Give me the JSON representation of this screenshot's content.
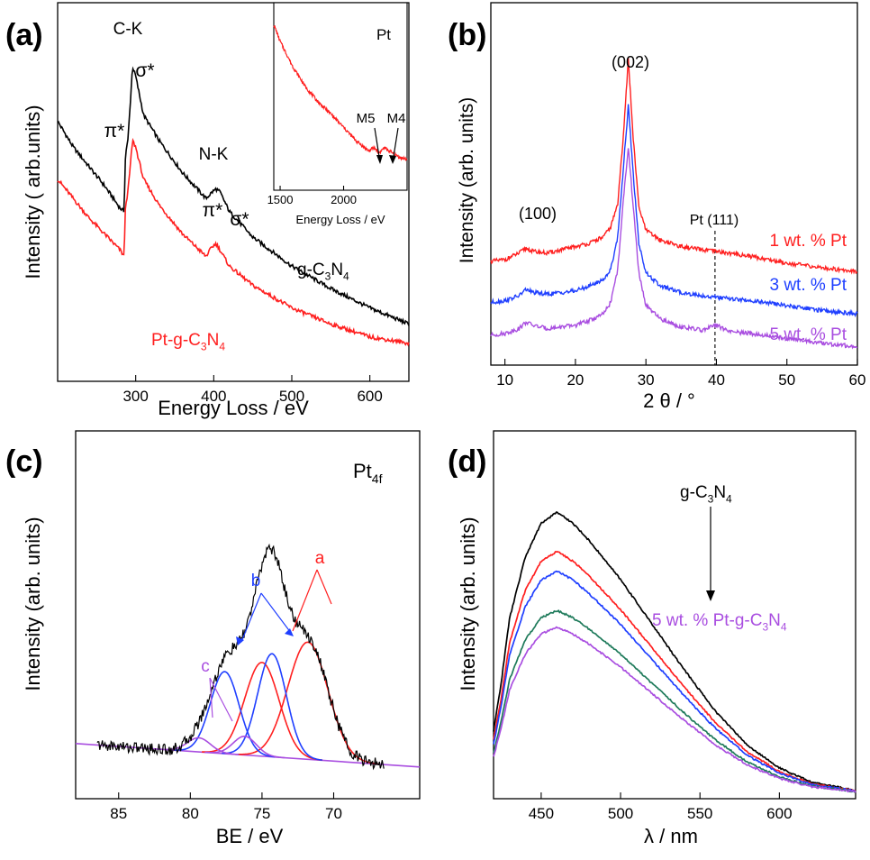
{
  "chart_data": [
    {
      "panel": "(a)",
      "type": "line",
      "xlabel": "Energy Loss / eV",
      "ylabel": "Intensity ( arb.units)",
      "xlim": [
        200,
        650
      ],
      "xticks": [
        "300",
        "400",
        "500",
        "600"
      ],
      "edge_labels": [
        "C-K",
        "N-K"
      ],
      "annotations": [
        "π*",
        "σ*",
        "π*",
        "σ*"
      ],
      "series": [
        {
          "name": "g-C3N4",
          "name_parts": [
            "g-C",
            "3",
            "N",
            "4"
          ],
          "color": "#000000",
          "x": [
            200,
            220,
            240,
            260,
            280,
            285,
            287,
            290,
            296,
            300,
            310,
            330,
            360,
            390,
            398,
            403,
            408,
            420,
            450,
            500,
            550,
            600,
            650
          ],
          "y": [
            0.78,
            0.7,
            0.64,
            0.58,
            0.51,
            0.5,
            0.68,
            0.72,
            0.95,
            0.92,
            0.8,
            0.72,
            0.62,
            0.54,
            0.56,
            0.57,
            0.56,
            0.5,
            0.42,
            0.33,
            0.26,
            0.2,
            0.15
          ]
        },
        {
          "name": "Pt-g-C3N4",
          "name_parts": [
            "Pt-g-C",
            "3",
            "N",
            "4"
          ],
          "color": "#ff1f1f",
          "x": [
            200,
            220,
            240,
            260,
            280,
            285,
            287,
            290,
            296,
            300,
            310,
            330,
            360,
            390,
            398,
            403,
            408,
            420,
            450,
            500,
            550,
            600,
            650
          ],
          "y": [
            0.6,
            0.54,
            0.48,
            0.43,
            0.38,
            0.36,
            0.52,
            0.56,
            0.72,
            0.7,
            0.6,
            0.52,
            0.43,
            0.36,
            0.39,
            0.4,
            0.38,
            0.33,
            0.27,
            0.2,
            0.15,
            0.11,
            0.09
          ]
        }
      ],
      "inset": {
        "title": "Pt",
        "xlabel": "Energy Loss / eV",
        "xticks": [
          "1500",
          "2000"
        ],
        "xlim": [
          1450,
          2500
        ],
        "annotations": [
          "M5",
          "M4"
        ],
        "series": [
          {
            "color": "#ff1f1f",
            "x": [
              1450,
              1500,
              1600,
              1700,
              1800,
              1900,
              2000,
              2100,
              2200,
              2240,
              2280,
              2320,
              2360,
              2400,
              2450,
              2500
            ],
            "y": [
              0.95,
              0.85,
              0.7,
              0.58,
              0.49,
              0.42,
              0.34,
              0.26,
              0.2,
              0.22,
              0.19,
              0.22,
              0.2,
              0.18,
              0.16,
              0.15
            ]
          }
        ]
      }
    },
    {
      "panel": "(b)",
      "type": "line",
      "xlabel": "2 θ / °",
      "ylabel": "Intensity (arb. units)",
      "xlim": [
        8,
        60
      ],
      "xticks": [
        "10",
        "20",
        "30",
        "40",
        "50",
        "60"
      ],
      "peak_labels": [
        "(100)",
        "(002)",
        "Pt (111)"
      ],
      "reference_line_x": 39.8,
      "series": [
        {
          "name": "1 wt. % Pt",
          "color": "#ff1f1f",
          "x": [
            8,
            10,
            12,
            13,
            14,
            16,
            18,
            20,
            22,
            24,
            25,
            26,
            26.8,
            27.5,
            28.2,
            29,
            30,
            32,
            35,
            38,
            40,
            45,
            50,
            55,
            60
          ],
          "y": [
            0.55,
            0.56,
            0.6,
            0.63,
            0.61,
            0.6,
            0.62,
            0.64,
            0.66,
            0.7,
            0.76,
            0.9,
            1.32,
            1.78,
            1.3,
            0.88,
            0.74,
            0.68,
            0.64,
            0.62,
            0.61,
            0.58,
            0.54,
            0.51,
            0.49
          ]
        },
        {
          "name": "3 wt. % Pt",
          "color": "#1f3fff",
          "x": [
            8,
            10,
            12,
            13,
            14,
            16,
            18,
            20,
            22,
            24,
            25,
            26,
            26.8,
            27.5,
            28.2,
            29,
            30,
            32,
            35,
            38,
            40,
            45,
            50,
            55,
            60
          ],
          "y": [
            0.3,
            0.31,
            0.34,
            0.38,
            0.36,
            0.35,
            0.36,
            0.37,
            0.4,
            0.44,
            0.5,
            0.7,
            1.12,
            1.5,
            1.08,
            0.66,
            0.48,
            0.4,
            0.36,
            0.34,
            0.33,
            0.31,
            0.28,
            0.25,
            0.23
          ]
        },
        {
          "name": "5 wt. % Pt",
          "color": "#a94ee0",
          "x": [
            8,
            10,
            12,
            13,
            14,
            16,
            18,
            20,
            22,
            24,
            25,
            26,
            26.8,
            27.5,
            28.2,
            29,
            30,
            32,
            35,
            38,
            40,
            42,
            45,
            50,
            55,
            60
          ],
          "y": [
            0.1,
            0.11,
            0.14,
            0.18,
            0.16,
            0.14,
            0.15,
            0.16,
            0.19,
            0.23,
            0.3,
            0.5,
            0.92,
            1.25,
            0.88,
            0.48,
            0.28,
            0.2,
            0.15,
            0.13,
            0.16,
            0.12,
            0.11,
            0.08,
            0.05,
            0.03
          ]
        }
      ]
    },
    {
      "panel": "(c)",
      "type": "line",
      "title_parts": [
        "Pt",
        "4f"
      ],
      "xlabel": "BE / eV",
      "ylabel": "Intensity (arb. units)",
      "xlim": [
        88,
        64
      ],
      "xticks": [
        "85",
        "80",
        "75",
        "70"
      ],
      "labels": [
        "a",
        "b",
        "c"
      ],
      "label_colors": [
        "#ff1f1f",
        "#1f3fff",
        "#a94ee0"
      ],
      "baseline": {
        "color": "#a94ee0",
        "x": [
          88,
          64
        ],
        "y": [
          0.12,
          0.02
        ]
      },
      "components": [
        {
          "group": "a",
          "color": "#ff1f1f",
          "center": 71.8,
          "height": 0.5,
          "width": 1.4
        },
        {
          "group": "a",
          "color": "#ff1f1f",
          "center": 75.0,
          "height": 0.4,
          "width": 1.2
        },
        {
          "group": "b",
          "color": "#1f3fff",
          "center": 74.3,
          "height": 0.44,
          "width": 1.0
        },
        {
          "group": "b",
          "color": "#1f3fff",
          "center": 77.6,
          "height": 0.35,
          "width": 1.0
        },
        {
          "group": "c",
          "color": "#a94ee0",
          "center": 76.2,
          "height": 0.08,
          "width": 0.8
        },
        {
          "group": "c",
          "color": "#a94ee0",
          "center": 79.4,
          "height": 0.06,
          "width": 0.8
        }
      ],
      "envelope_color": "#000000"
    },
    {
      "panel": "(d)",
      "type": "line",
      "xlabel": "λ / nm",
      "ylabel": "Intensity (arb. units)",
      "xlim": [
        420,
        648
      ],
      "xticks": [
        "450",
        "500",
        "550",
        "600"
      ],
      "arrow_top_label_parts": [
        "g-C",
        "3",
        "N",
        "4"
      ],
      "arrow_bottom_label_parts": [
        "5 wt. % Pt-g-C",
        "3",
        "N",
        "4"
      ],
      "series": [
        {
          "color": "#000000",
          "peak": 1.0
        },
        {
          "color": "#ff1f1f",
          "peak": 0.86
        },
        {
          "color": "#1f3fff",
          "peak": 0.79
        },
        {
          "color": "#1e7a5a",
          "peak": 0.65
        },
        {
          "color": "#a94ee0",
          "peak": 0.59
        }
      ],
      "profile_x": [
        420,
        425,
        430,
        440,
        450,
        460,
        470,
        480,
        500,
        520,
        540,
        560,
        580,
        600,
        620,
        648
      ],
      "profile_y": [
        0.22,
        0.4,
        0.62,
        0.84,
        0.96,
        1.0,
        0.96,
        0.9,
        0.76,
        0.6,
        0.44,
        0.29,
        0.17,
        0.09,
        0.04,
        0.01
      ]
    }
  ]
}
